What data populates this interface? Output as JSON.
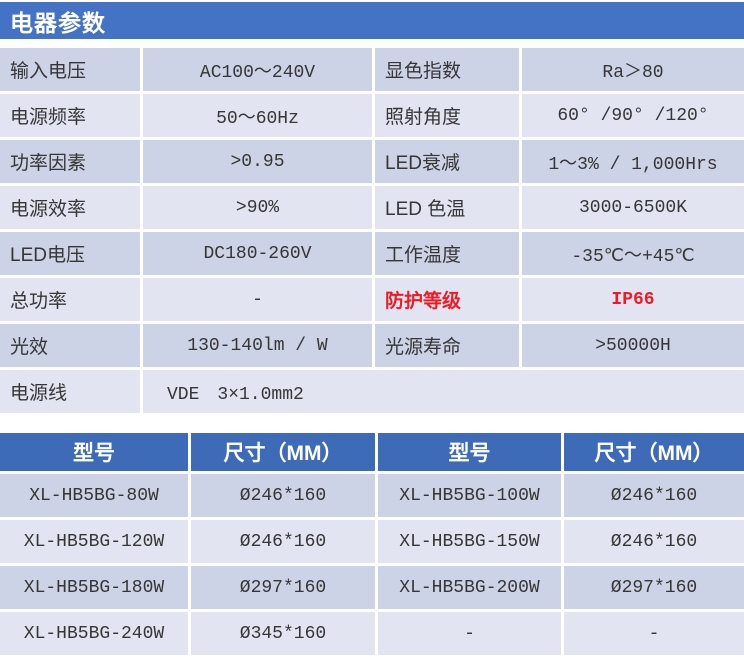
{
  "title": "电器参数",
  "colors": {
    "title_bar_blue": "#4472c4",
    "table_header_blue": "#3e6bb7",
    "row_dark": "#ccd3e7",
    "row_light": "#e2e5f1",
    "text": "#363636",
    "highlight_red": "#ed1c24"
  },
  "spec_table": {
    "rows": [
      {
        "label1": "输入电压",
        "value1": "AC100～240V",
        "label2": "显色指数",
        "value2": "Ra＞80"
      },
      {
        "label1": "电源频率",
        "value1": "50～60Hz",
        "label2": "照射角度",
        "value2": "60° /90° /120°"
      },
      {
        "label1": "功率因素",
        "value1": ">0.95",
        "label2": "LED衰减",
        "value2": "1～3% / 1,000Hrs"
      },
      {
        "label1": "电源效率",
        "value1": ">90%",
        "label2": "LED 色温",
        "value2": "3000-6500K"
      },
      {
        "label1": "LED电压",
        "value1": "DC180-260V",
        "label2": "工作温度",
        "value2": "-35℃～+45℃"
      },
      {
        "label1": "总功率",
        "value1": "-",
        "label2": "防护等级",
        "value2": "IP66"
      },
      {
        "label1": "光效",
        "value1": "130-140lm / W",
        "label2": "光源寿命",
        "value2": ">50000H"
      },
      {
        "label1": "电源线",
        "value1": "VDE　3×1.0mm2"
      }
    ]
  },
  "model_table": {
    "headers": [
      "型号",
      "尺寸（MM）",
      "型号",
      "尺寸（MM）"
    ],
    "rows": [
      {
        "model1": "XL-HB5BG-80W",
        "size1": "Ø246*160",
        "model2": "XL-HB5BG-100W",
        "size2": "Ø246*160"
      },
      {
        "model1": "XL-HB5BG-120W",
        "size1": "Ø246*160",
        "model2": "XL-HB5BG-150W",
        "size2": "Ø246*160"
      },
      {
        "model1": "XL-HB5BG-180W",
        "size1": "Ø297*160",
        "model2": "XL-HB5BG-200W",
        "size2": "Ø297*160"
      },
      {
        "model1": "XL-HB5BG-240W",
        "size1": "Ø345*160",
        "model2": "-",
        "size2": "-"
      }
    ]
  }
}
